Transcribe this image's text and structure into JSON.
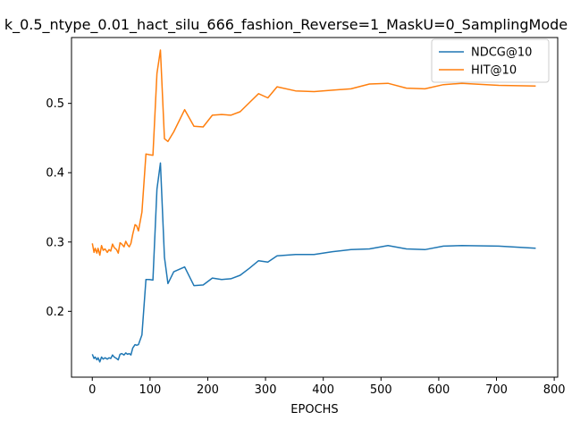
{
  "chart_data": {
    "type": "line",
    "title": "k_0.5_ntype_0.01_hact_silu_666_fashion_Reverse=1_MaskU=0_SamplingMode",
    "xlabel": "EPOCHS",
    "ylabel": "",
    "xlim": [
      -36,
      806
    ],
    "ylim": [
      0.105,
      0.595
    ],
    "xticks": [
      0,
      100,
      200,
      300,
      400,
      500,
      600,
      700,
      800
    ],
    "yticks": [
      0.2,
      0.3,
      0.4,
      0.5
    ],
    "ytick_labels": [
      "0.2",
      "0.3",
      "0.4",
      "0.5"
    ],
    "grid": false,
    "legend_position": "upper-right",
    "series": [
      {
        "name": "NDCG@10",
        "color": "#1f77b4",
        "x": [
          0,
          3,
          5,
          8,
          10,
          13,
          16,
          19,
          22,
          26,
          29,
          32,
          35,
          38,
          42,
          45,
          48,
          51,
          55,
          58,
          61,
          64,
          67,
          70,
          74,
          77,
          80,
          86,
          93,
          99,
          105,
          112,
          118,
          125,
          131,
          141,
          160,
          176,
          192,
          208,
          224,
          240,
          256,
          272,
          288,
          304,
          320,
          352,
          384,
          416,
          448,
          480,
          512,
          544,
          576,
          608,
          640,
          704,
          768
        ],
        "y": [
          0.138,
          0.132,
          0.134,
          0.13,
          0.133,
          0.127,
          0.134,
          0.131,
          0.133,
          0.131,
          0.133,
          0.132,
          0.137,
          0.134,
          0.132,
          0.13,
          0.138,
          0.139,
          0.137,
          0.14,
          0.138,
          0.139,
          0.137,
          0.147,
          0.152,
          0.151,
          0.152,
          0.166,
          0.246,
          0.246,
          0.245,
          0.376,
          0.414,
          0.278,
          0.24,
          0.257,
          0.264,
          0.237,
          0.238,
          0.248,
          0.246,
          0.247,
          0.252,
          0.262,
          0.273,
          0.271,
          0.28,
          0.282,
          0.282,
          0.286,
          0.289,
          0.29,
          0.295,
          0.29,
          0.289,
          0.294,
          0.295,
          0.294,
          0.291
        ]
      },
      {
        "name": "HIT@10",
        "color": "#ff7f0e",
        "x": [
          0,
          3,
          5,
          8,
          10,
          13,
          16,
          19,
          22,
          26,
          29,
          32,
          35,
          38,
          42,
          45,
          48,
          51,
          55,
          58,
          61,
          64,
          67,
          70,
          74,
          77,
          80,
          86,
          93,
          99,
          105,
          112,
          118,
          125,
          131,
          141,
          160,
          176,
          192,
          208,
          224,
          240,
          256,
          272,
          288,
          304,
          320,
          352,
          384,
          416,
          448,
          480,
          512,
          544,
          576,
          608,
          640,
          704,
          768
        ],
        "y": [
          0.298,
          0.285,
          0.291,
          0.284,
          0.291,
          0.281,
          0.295,
          0.288,
          0.29,
          0.285,
          0.289,
          0.287,
          0.297,
          0.292,
          0.289,
          0.284,
          0.299,
          0.297,
          0.293,
          0.301,
          0.296,
          0.293,
          0.298,
          0.311,
          0.325,
          0.323,
          0.316,
          0.343,
          0.427,
          0.426,
          0.425,
          0.543,
          0.577,
          0.449,
          0.445,
          0.459,
          0.491,
          0.467,
          0.466,
          0.483,
          0.484,
          0.483,
          0.488,
          0.501,
          0.514,
          0.508,
          0.524,
          0.518,
          0.517,
          0.519,
          0.521,
          0.528,
          0.529,
          0.522,
          0.521,
          0.527,
          0.529,
          0.526,
          0.525
        ]
      }
    ]
  }
}
